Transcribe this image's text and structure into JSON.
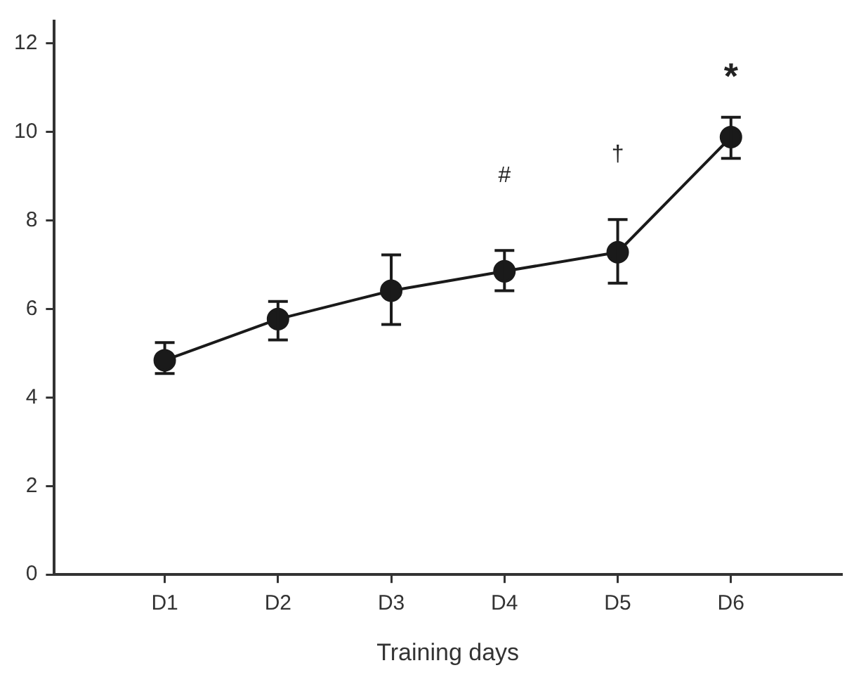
{
  "chart_data": {
    "type": "line",
    "xlabel": "Training days",
    "categories": [
      "D1",
      "D2",
      "D3",
      "D4",
      "D5",
      "D6"
    ],
    "series": [
      {
        "color": "#1a1a1a",
        "values": [
          4.84,
          5.77,
          6.41,
          6.85,
          7.28,
          9.88
        ],
        "errors": [
          [
            4.54,
            5.24
          ],
          [
            5.3,
            6.17
          ],
          [
            5.65,
            7.22
          ],
          [
            6.41,
            7.32
          ],
          [
            6.58,
            8.02
          ],
          [
            9.4,
            10.33
          ]
        ]
      }
    ],
    "ylim": [
      0,
      12.5
    ],
    "yticks": [
      0,
      2,
      4,
      6,
      8,
      10,
      12
    ],
    "grid": false,
    "legend": false,
    "marker": "circle",
    "line_style": "solid",
    "annotations": [
      "#",
      "†",
      "*"
    ]
  }
}
